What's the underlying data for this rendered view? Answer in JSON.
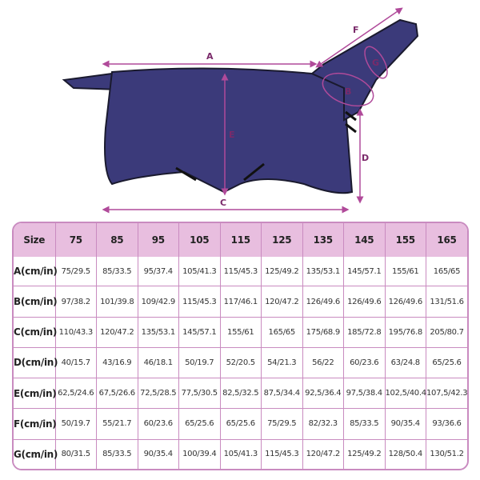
{
  "diagram": {
    "labels": [
      "A",
      "B",
      "C",
      "D",
      "E",
      "F",
      "G"
    ],
    "colors": {
      "rug": "#3b3a7a",
      "trim": "#1a1a2e",
      "arrow": "#b04a9a",
      "header": "#e8bedf",
      "border": "#c98bc0"
    }
  },
  "table": {
    "headers": [
      "Size",
      "75",
      "85",
      "95",
      "105",
      "115",
      "125",
      "135",
      "145",
      "155",
      "165"
    ],
    "rows": [
      {
        "label": "A(cm/in)",
        "values": [
          "75/29.5",
          "85/33.5",
          "95/37.4",
          "105/41.3",
          "115/45.3",
          "125/49.2",
          "135/53.1",
          "145/57.1",
          "155/61",
          "165/65"
        ]
      },
      {
        "label": "B(cm/in)",
        "values": [
          "97/38.2",
          "101/39.8",
          "109/42.9",
          "115/45.3",
          "117/46.1",
          "120/47.2",
          "126/49.6",
          "126/49.6",
          "126/49.6",
          "131/51.6"
        ]
      },
      {
        "label": "C(cm/in)",
        "values": [
          "110/43.3",
          "120/47.2",
          "135/53.1",
          "145/57.1",
          "155/61",
          "165/65",
          "175/68.9",
          "185/72.8",
          "195/76.8",
          "205/80.7"
        ]
      },
      {
        "label": "D(cm/in)",
        "values": [
          "40/15.7",
          "43/16.9",
          "46/18.1",
          "50/19.7",
          "52/20.5",
          "54/21.3",
          "56/22",
          "60/23.6",
          "63/24.8",
          "65/25.6"
        ]
      },
      {
        "label": "E(cm/in)",
        "values": [
          "62,5/24.6",
          "67,5/26.6",
          "72,5/28.5",
          "77,5/30.5",
          "82,5/32.5",
          "87,5/34.4",
          "92,5/36.4",
          "97,5/38.4",
          "102,5/40.4",
          "107,5/42.3"
        ]
      },
      {
        "label": "F(cm/in)",
        "values": [
          "50/19.7",
          "55/21.7",
          "60/23.6",
          "65/25.6",
          "65/25.6",
          "75/29.5",
          "82/32.3",
          "85/33.5",
          "90/35.4",
          "93/36.6"
        ]
      },
      {
        "label": "G(cm/in)",
        "values": [
          "80/31.5",
          "85/33.5",
          "90/35.4",
          "100/39.4",
          "105/41.3",
          "115/45.3",
          "120/47.2",
          "125/49.2",
          "128/50.4",
          "130/51.2"
        ]
      }
    ]
  }
}
